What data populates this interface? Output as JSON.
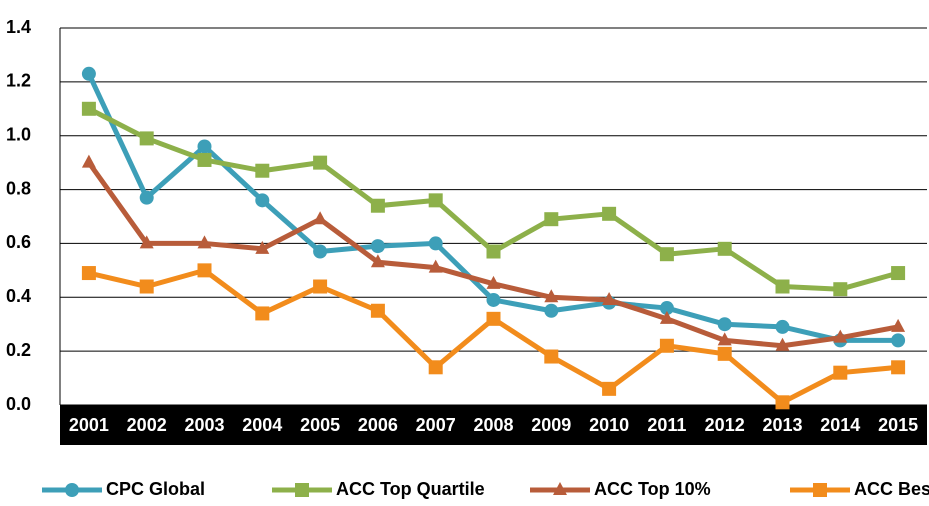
{
  "chart_data": {
    "type": "line",
    "categories": [
      "2001",
      "2002",
      "2003",
      "2004",
      "2005",
      "2006",
      "2007",
      "2008",
      "2009",
      "2010",
      "2011",
      "2012",
      "2013",
      "2014",
      "2015"
    ],
    "series": [
      {
        "name": "CPC Global",
        "color": "#3d9fb8",
        "marker": "circle",
        "values": [
          1.23,
          0.77,
          0.96,
          0.76,
          0.57,
          0.59,
          0.6,
          0.39,
          0.35,
          0.38,
          0.36,
          0.3,
          0.29,
          0.24,
          0.24
        ]
      },
      {
        "name": "ACC Top Quartile",
        "color": "#8db04a",
        "marker": "square",
        "values": [
          1.1,
          0.99,
          0.91,
          0.87,
          0.9,
          0.74,
          0.76,
          0.57,
          0.69,
          0.71,
          0.56,
          0.58,
          0.44,
          0.43,
          0.49
        ]
      },
      {
        "name": "ACC Top 10%",
        "color": "#b85c3a",
        "marker": "triangle",
        "values": [
          0.9,
          0.6,
          0.6,
          0.58,
          0.69,
          0.53,
          0.51,
          0.45,
          0.4,
          0.39,
          0.32,
          0.24,
          0.22,
          0.25,
          0.29
        ]
      },
      {
        "name": "ACC Best",
        "color": "#f28c1c",
        "marker": "square",
        "values": [
          0.49,
          0.44,
          0.5,
          0.34,
          0.44,
          0.35,
          0.14,
          0.32,
          0.18,
          0.06,
          0.22,
          0.19,
          0.01,
          0.12,
          0.14
        ]
      }
    ],
    "ylim": [
      0,
      1.4
    ],
    "yticks": [
      {
        "value": 0,
        "label": "0.0"
      },
      0.2,
      0.4,
      0.6,
      0.8,
      {
        "value": 1,
        "label": "1.0"
      },
      1.2,
      1.4
    ],
    "grid": true,
    "legend": "bottom"
  }
}
